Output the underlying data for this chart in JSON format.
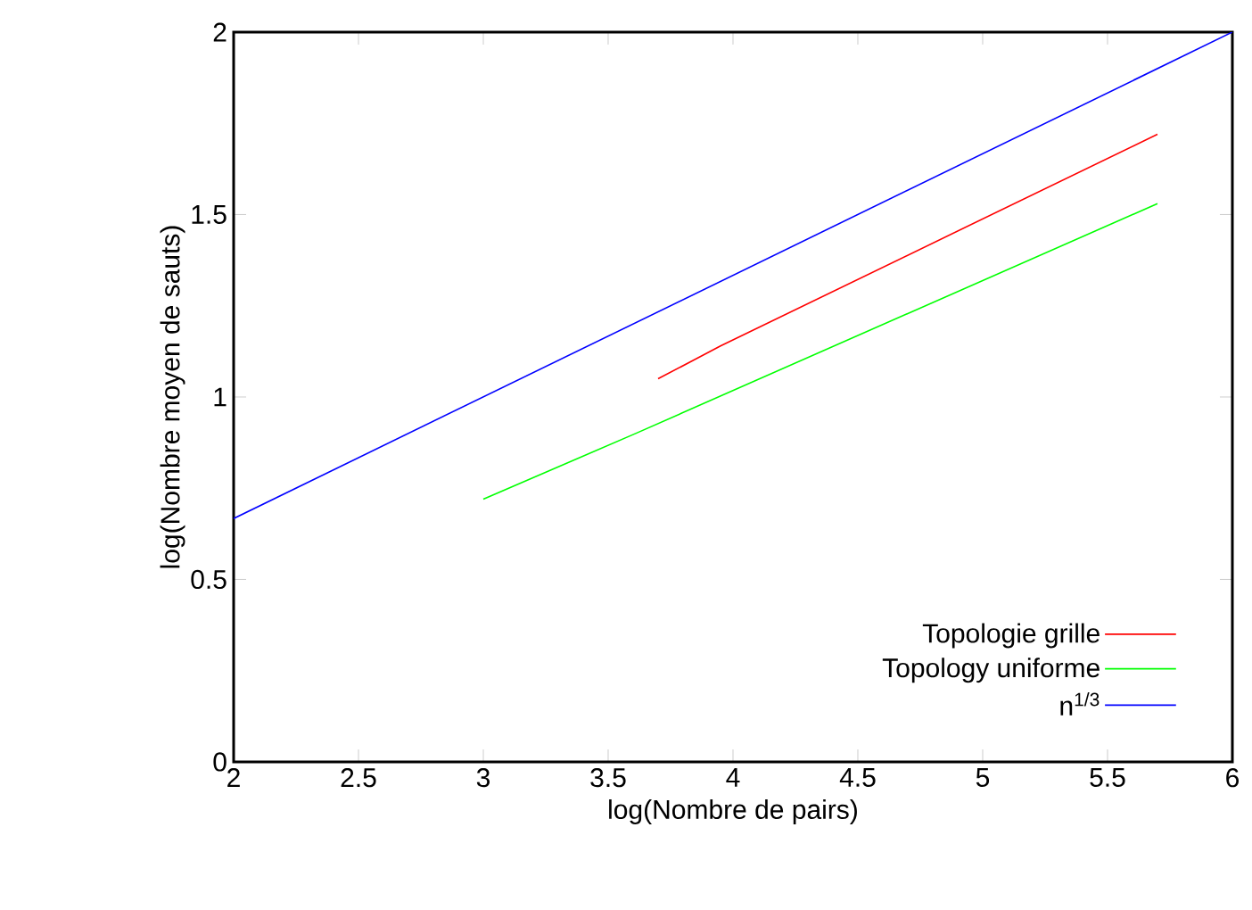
{
  "chart_data": {
    "type": "line",
    "xlabel": "log(Nombre de pairs)",
    "ylabel": "log(Nombre moyen de sauts)",
    "xlim": [
      2,
      6
    ],
    "ylim": [
      0,
      2
    ],
    "xticks": [
      2,
      2.5,
      3,
      3.5,
      4,
      4.5,
      5,
      5.5,
      6
    ],
    "yticks": [
      0,
      0.5,
      1,
      1.5,
      2
    ],
    "grid": false,
    "legend": "bottom right",
    "series": [
      {
        "name": "Topologie grille",
        "color": "#ff0000",
        "x": [
          3.7,
          3.84,
          3.95,
          5.7
        ],
        "values": [
          1.05,
          1.1,
          1.14,
          1.72
        ]
      },
      {
        "name": "Topology uniforme",
        "color": "#00ff00",
        "x": [
          3.0,
          3.61,
          5.7
        ],
        "values": [
          0.72,
          0.9,
          1.53
        ]
      },
      {
        "name": "n$^{1/3}$",
        "color": "#0000ff",
        "x": [
          2,
          6
        ],
        "values": [
          0.667,
          2.0
        ]
      }
    ]
  }
}
